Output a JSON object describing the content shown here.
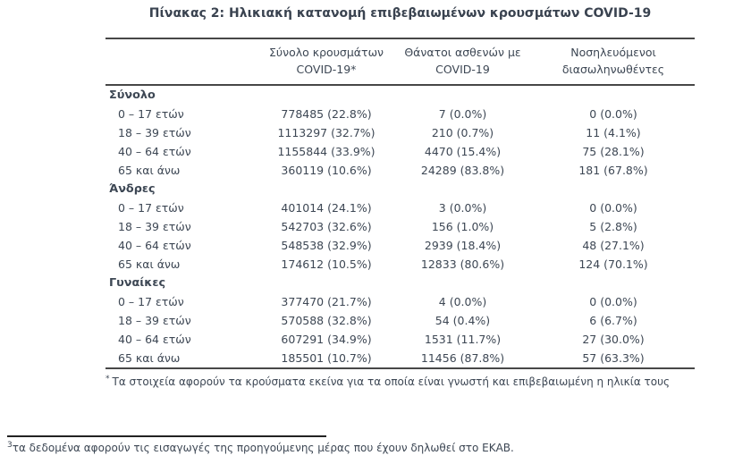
{
  "page": {
    "title": "Πίνακας 2: Ηλικιακή κατανομή επιβεβαιωμένων κρουσμάτων COVID-19"
  },
  "table": {
    "columns": [
      "Σύνολο κρουσμάτων COVID-19*",
      "Θάνατοι ασθενών με COVID-19",
      "Νοσηλευόμενοι διασωληνωθέντες"
    ],
    "sections": [
      {
        "name": "Σύνολο",
        "rows": [
          {
            "label": "0 – 17 ετών",
            "cases": "778485 (22.8%)",
            "deaths": "7 (0.0%)",
            "intubated": "0 (0.0%)"
          },
          {
            "label": "18 – 39 ετών",
            "cases": "1113297 (32.7%)",
            "deaths": "210 (0.7%)",
            "intubated": "11 (4.1%)"
          },
          {
            "label": "40 – 64 ετών",
            "cases": "1155844 (33.9%)",
            "deaths": "4470 (15.4%)",
            "intubated": "75 (28.1%)"
          },
          {
            "label": "65 και άνω",
            "cases": "360119 (10.6%)",
            "deaths": "24289 (83.8%)",
            "intubated": "181 (67.8%)"
          }
        ]
      },
      {
        "name": "Άνδρες",
        "rows": [
          {
            "label": "0 – 17 ετών",
            "cases": "401014 (24.1%)",
            "deaths": "3 (0.0%)",
            "intubated": "0 (0.0%)"
          },
          {
            "label": "18 – 39 ετών",
            "cases": "542703 (32.6%)",
            "deaths": "156 (1.0%)",
            "intubated": "5 (2.8%)"
          },
          {
            "label": "40 – 64 ετών",
            "cases": "548538 (32.9%)",
            "deaths": "2939 (18.4%)",
            "intubated": "48 (27.1%)"
          },
          {
            "label": "65 και άνω",
            "cases": "174612 (10.5%)",
            "deaths": "12833 (80.6%)",
            "intubated": "124 (70.1%)"
          }
        ]
      },
      {
        "name": "Γυναίκες",
        "rows": [
          {
            "label": "0 – 17 ετών",
            "cases": "377470 (21.7%)",
            "deaths": "4 (0.0%)",
            "intubated": "0 (0.0%)"
          },
          {
            "label": "18 – 39 ετών",
            "cases": "570588 (32.8%)",
            "deaths": "54 (0.4%)",
            "intubated": "6 (6.7%)"
          },
          {
            "label": "40 – 64 ετών",
            "cases": "607291 (34.9%)",
            "deaths": "1531 (11.7%)",
            "intubated": "27 (30.0%)"
          },
          {
            "label": "65 και άνω",
            "cases": "185501 (10.7%)",
            "deaths": "11456 (87.8%)",
            "intubated": "57 (63.3%)"
          }
        ]
      }
    ],
    "footnote": {
      "marker": "*",
      "text": "Τα στοιχεία αφορούν τα κρούσματα εκείνα για τα οποία είναι γνωστή και επιβεβαιωμένη η ηλικία τους"
    }
  },
  "page_footnote": {
    "marker": "3",
    "text": "τα δεδομένα αφορούν τις εισαγωγές της προηγούμενης μέρας που έχουν δηλωθεί στο ΕΚΑΒ."
  },
  "colors": {
    "text": "#3d4754",
    "rule": "#474747",
    "divider": "#222222"
  }
}
